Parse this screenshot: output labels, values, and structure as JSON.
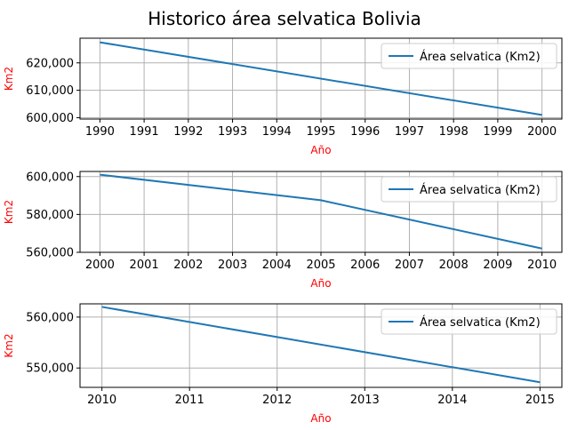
{
  "title": "Historico área selvatica Bolivia",
  "colors": {
    "line": "#1f77b4",
    "axis_label": "#ff0000",
    "grid": "#b0b0b0",
    "text": "#000000"
  },
  "chart_data": [
    {
      "type": "line",
      "xlabel": "Año",
      "ylabel": "Km2",
      "grid": true,
      "legend_position": "top-right",
      "ylim": [
        599500,
        629000
      ],
      "xlim": [
        1989.55,
        2000.45
      ],
      "x_ticks": [
        1990,
        1991,
        1992,
        1993,
        1994,
        1995,
        1996,
        1997,
        1998,
        1999,
        2000
      ],
      "y_ticks": [
        600000,
        610000,
        620000
      ],
      "y_tick_labels": [
        "600,000",
        "610,000",
        "620,000"
      ],
      "series": [
        {
          "name": "Área selvatica (Km2)",
          "x": [
            1990,
            2000
          ],
          "y": [
            627500,
            601000
          ]
        }
      ]
    },
    {
      "type": "line",
      "xlabel": "Año",
      "ylabel": "Km2",
      "grid": true,
      "legend_position": "top-right",
      "ylim": [
        560000,
        602700
      ],
      "xlim": [
        1999.55,
        2010.45
      ],
      "x_ticks": [
        2000,
        2001,
        2002,
        2003,
        2004,
        2005,
        2006,
        2007,
        2008,
        2009,
        2010
      ],
      "y_ticks": [
        560000,
        580000,
        600000
      ],
      "y_tick_labels": [
        "560,000",
        "580,000",
        "600,000"
      ],
      "series": [
        {
          "name": "Área selvatica (Km2)",
          "x": [
            2000,
            2005,
            2010
          ],
          "y": [
            601000,
            587500,
            562000
          ]
        }
      ]
    },
    {
      "type": "line",
      "xlabel": "Año",
      "ylabel": "Km2",
      "grid": true,
      "legend_position": "top-right",
      "ylim": [
        546200,
        562600
      ],
      "xlim": [
        2009.75,
        2015.25
      ],
      "x_ticks": [
        2010,
        2011,
        2012,
        2013,
        2014,
        2015
      ],
      "y_ticks": [
        550000,
        560000
      ],
      "y_tick_labels": [
        "550,000",
        "560,000"
      ],
      "series": [
        {
          "name": "Área selvatica (Km2)",
          "x": [
            2010,
            2015
          ],
          "y": [
            562000,
            547200
          ]
        }
      ]
    }
  ]
}
